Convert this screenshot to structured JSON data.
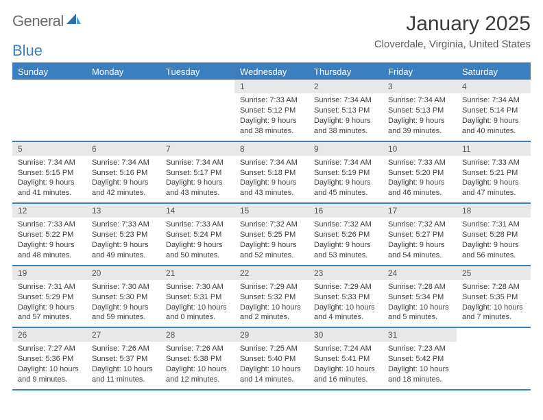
{
  "brand": {
    "word1": "General",
    "word2": "Blue"
  },
  "title": "January 2025",
  "location": "Cloverdale, Virginia, United States",
  "colors": {
    "accent": "#3b7fbf",
    "daynum_bg": "#e8e8e8",
    "text": "#3c3c3c"
  },
  "daynames": [
    "Sunday",
    "Monday",
    "Tuesday",
    "Wednesday",
    "Thursday",
    "Friday",
    "Saturday"
  ],
  "weeks": [
    [
      {
        "n": "",
        "empty": true
      },
      {
        "n": "",
        "empty": true
      },
      {
        "n": "",
        "empty": true
      },
      {
        "n": "1",
        "sr": "7:33 AM",
        "ss": "5:12 PM",
        "dl": "9 hours and 38 minutes."
      },
      {
        "n": "2",
        "sr": "7:34 AM",
        "ss": "5:13 PM",
        "dl": "9 hours and 38 minutes."
      },
      {
        "n": "3",
        "sr": "7:34 AM",
        "ss": "5:13 PM",
        "dl": "9 hours and 39 minutes."
      },
      {
        "n": "4",
        "sr": "7:34 AM",
        "ss": "5:14 PM",
        "dl": "9 hours and 40 minutes."
      }
    ],
    [
      {
        "n": "5",
        "sr": "7:34 AM",
        "ss": "5:15 PM",
        "dl": "9 hours and 41 minutes."
      },
      {
        "n": "6",
        "sr": "7:34 AM",
        "ss": "5:16 PM",
        "dl": "9 hours and 42 minutes."
      },
      {
        "n": "7",
        "sr": "7:34 AM",
        "ss": "5:17 PM",
        "dl": "9 hours and 43 minutes."
      },
      {
        "n": "8",
        "sr": "7:34 AM",
        "ss": "5:18 PM",
        "dl": "9 hours and 43 minutes."
      },
      {
        "n": "9",
        "sr": "7:34 AM",
        "ss": "5:19 PM",
        "dl": "9 hours and 45 minutes."
      },
      {
        "n": "10",
        "sr": "7:33 AM",
        "ss": "5:20 PM",
        "dl": "9 hours and 46 minutes."
      },
      {
        "n": "11",
        "sr": "7:33 AM",
        "ss": "5:21 PM",
        "dl": "9 hours and 47 minutes."
      }
    ],
    [
      {
        "n": "12",
        "sr": "7:33 AM",
        "ss": "5:22 PM",
        "dl": "9 hours and 48 minutes."
      },
      {
        "n": "13",
        "sr": "7:33 AM",
        "ss": "5:23 PM",
        "dl": "9 hours and 49 minutes."
      },
      {
        "n": "14",
        "sr": "7:33 AM",
        "ss": "5:24 PM",
        "dl": "9 hours and 50 minutes."
      },
      {
        "n": "15",
        "sr": "7:32 AM",
        "ss": "5:25 PM",
        "dl": "9 hours and 52 minutes."
      },
      {
        "n": "16",
        "sr": "7:32 AM",
        "ss": "5:26 PM",
        "dl": "9 hours and 53 minutes."
      },
      {
        "n": "17",
        "sr": "7:32 AM",
        "ss": "5:27 PM",
        "dl": "9 hours and 54 minutes."
      },
      {
        "n": "18",
        "sr": "7:31 AM",
        "ss": "5:28 PM",
        "dl": "9 hours and 56 minutes."
      }
    ],
    [
      {
        "n": "19",
        "sr": "7:31 AM",
        "ss": "5:29 PM",
        "dl": "9 hours and 57 minutes."
      },
      {
        "n": "20",
        "sr": "7:30 AM",
        "ss": "5:30 PM",
        "dl": "9 hours and 59 minutes."
      },
      {
        "n": "21",
        "sr": "7:30 AM",
        "ss": "5:31 PM",
        "dl": "10 hours and 0 minutes."
      },
      {
        "n": "22",
        "sr": "7:29 AM",
        "ss": "5:32 PM",
        "dl": "10 hours and 2 minutes."
      },
      {
        "n": "23",
        "sr": "7:29 AM",
        "ss": "5:33 PM",
        "dl": "10 hours and 4 minutes."
      },
      {
        "n": "24",
        "sr": "7:28 AM",
        "ss": "5:34 PM",
        "dl": "10 hours and 5 minutes."
      },
      {
        "n": "25",
        "sr": "7:28 AM",
        "ss": "5:35 PM",
        "dl": "10 hours and 7 minutes."
      }
    ],
    [
      {
        "n": "26",
        "sr": "7:27 AM",
        "ss": "5:36 PM",
        "dl": "10 hours and 9 minutes."
      },
      {
        "n": "27",
        "sr": "7:26 AM",
        "ss": "5:37 PM",
        "dl": "10 hours and 11 minutes."
      },
      {
        "n": "28",
        "sr": "7:26 AM",
        "ss": "5:38 PM",
        "dl": "10 hours and 12 minutes."
      },
      {
        "n": "29",
        "sr": "7:25 AM",
        "ss": "5:40 PM",
        "dl": "10 hours and 14 minutes."
      },
      {
        "n": "30",
        "sr": "7:24 AM",
        "ss": "5:41 PM",
        "dl": "10 hours and 16 minutes."
      },
      {
        "n": "31",
        "sr": "7:23 AM",
        "ss": "5:42 PM",
        "dl": "10 hours and 18 minutes."
      },
      {
        "n": "",
        "empty": true
      }
    ]
  ],
  "labels": {
    "sunrise": "Sunrise: ",
    "sunset": "Sunset: ",
    "daylight": "Daylight: "
  }
}
